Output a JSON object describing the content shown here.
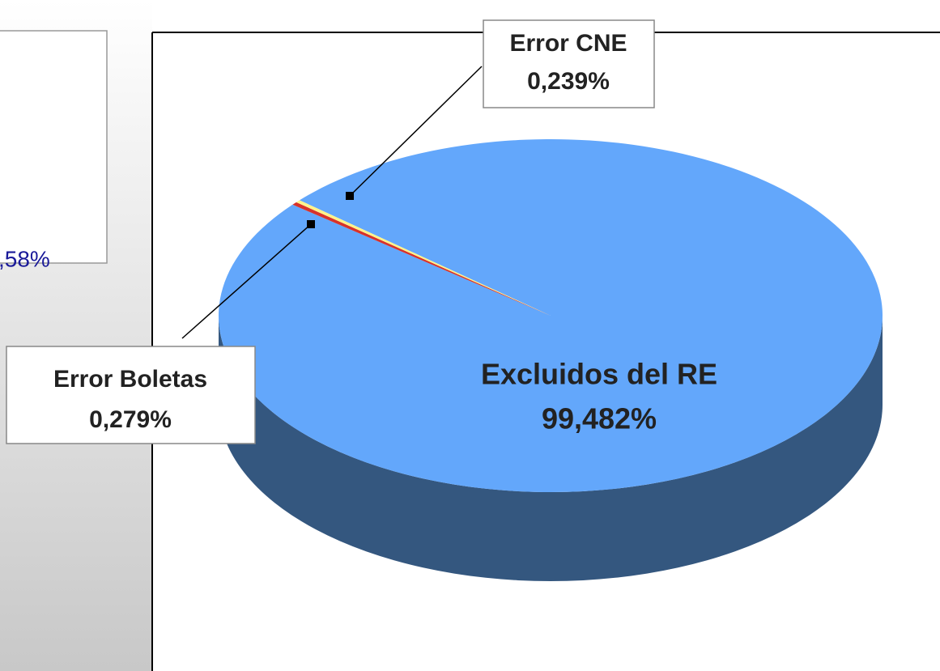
{
  "chart_data": {
    "type": "pie3d",
    "categories": [
      "Excluidos del RE",
      "Error Boletas",
      "Error CNE"
    ],
    "values": [
      99.482,
      0.279,
      0.239
    ],
    "value_labels": [
      "99,482%",
      "0,279%",
      "0,239%"
    ],
    "colors": [
      "#63a7fb",
      "#d8322a",
      "#fff38a"
    ],
    "side_color": "#34577f"
  },
  "side_panel": {
    "text": ",58%"
  }
}
